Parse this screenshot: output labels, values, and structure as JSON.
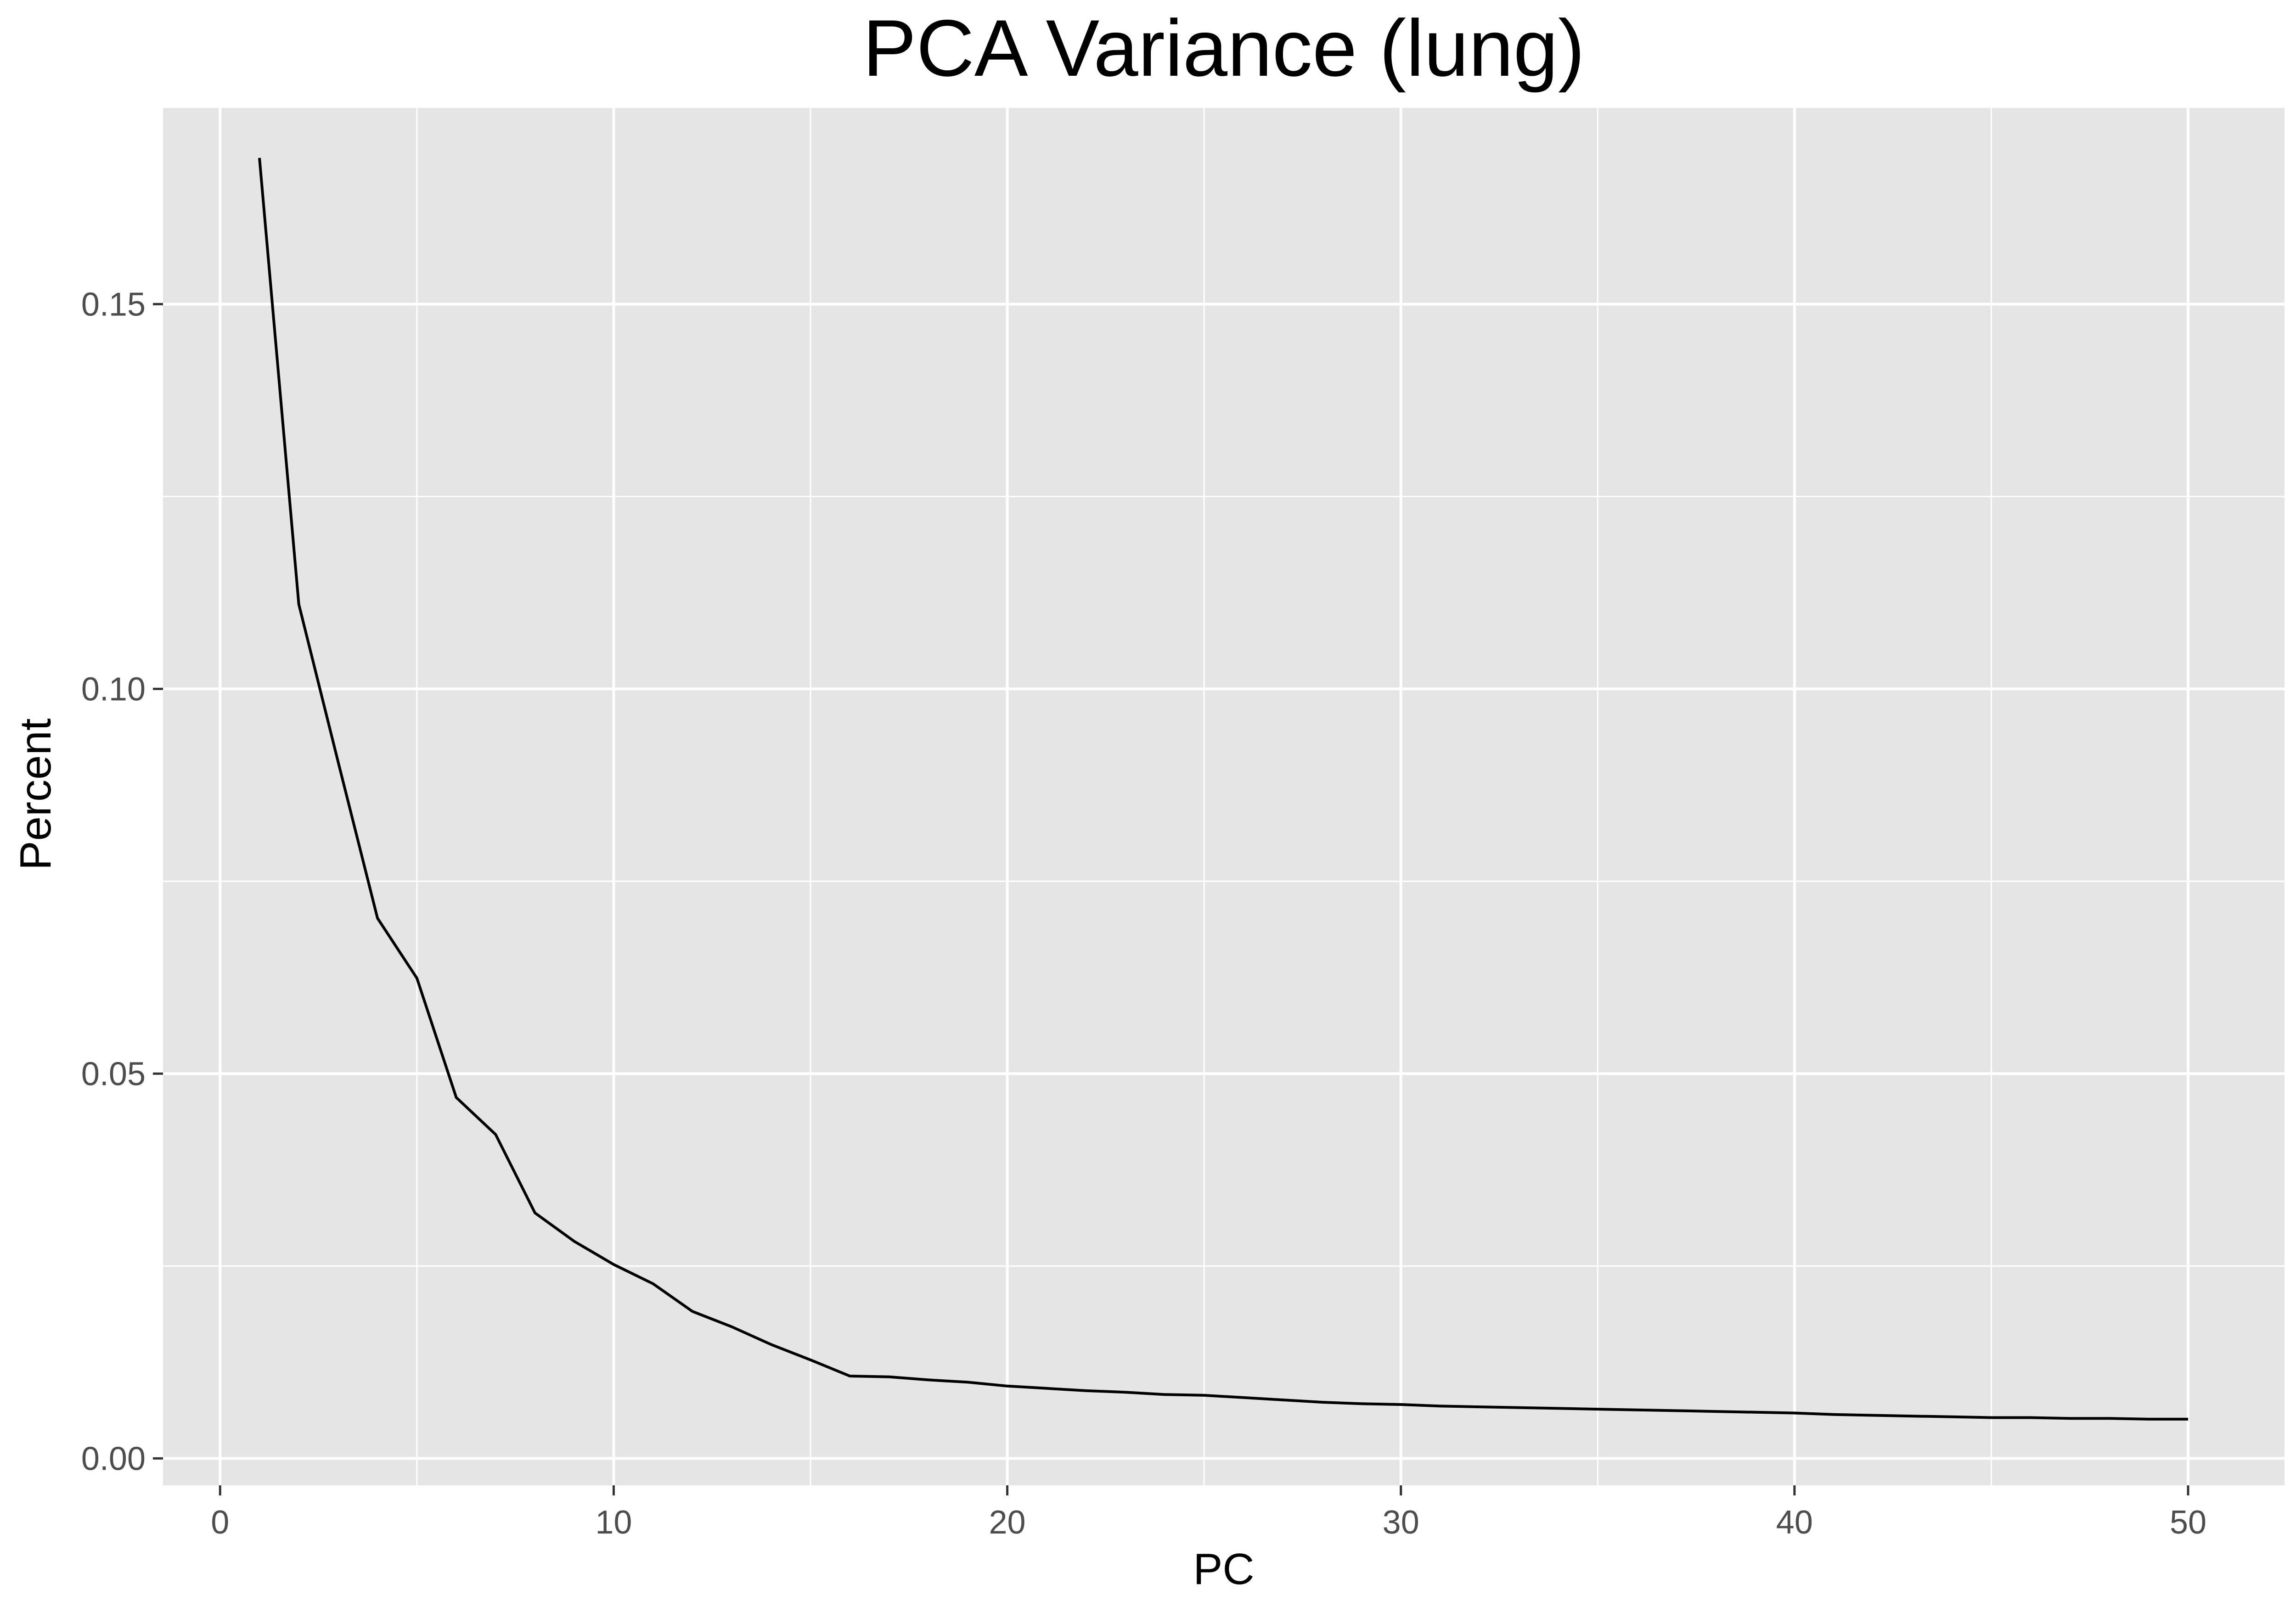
{
  "chart_data": {
    "type": "line",
    "title": "PCA Variance (lung)",
    "xlabel": "PC",
    "ylabel": "Percent",
    "xlim": [
      -1.45,
      52.45
    ],
    "ylim": [
      -0.0035,
      0.1755
    ],
    "x_ticks": [
      0,
      10,
      20,
      30,
      40,
      50
    ],
    "x_tick_labels": [
      "0",
      "10",
      "20",
      "30",
      "40",
      "50"
    ],
    "x_minor_ticks": [
      5,
      15,
      25,
      35,
      45
    ],
    "y_ticks": [
      0,
      0.05,
      0.1,
      0.15
    ],
    "y_tick_labels": [
      "0.00",
      "0.05",
      "0.10",
      "0.15"
    ],
    "y_minor_ticks": [
      0.025,
      0.075,
      0.125
    ],
    "grid": true,
    "colors": {
      "panel": "#e5e5e5",
      "grid": "#ffffff",
      "line": "#000000"
    },
    "series": [
      {
        "x": [
          1,
          2,
          3,
          4,
          5,
          6,
          7,
          8,
          9,
          10,
          11,
          12,
          13,
          14,
          15,
          16,
          17,
          18,
          19,
          20,
          21,
          22,
          23,
          24,
          25,
          26,
          27,
          28,
          29,
          30,
          31,
          32,
          33,
          34,
          35,
          36,
          37,
          38,
          39,
          40,
          41,
          42,
          43,
          44,
          45,
          46,
          47,
          48,
          49,
          50
        ],
        "values": [
          0.169,
          0.111,
          0.0905,
          0.0702,
          0.0624,
          0.0469,
          0.0421,
          0.0319,
          0.0282,
          0.0252,
          0.0227,
          0.0191,
          0.0171,
          0.0148,
          0.0128,
          0.0107,
          0.0106,
          0.0102,
          0.0099,
          0.0094,
          0.0091,
          0.0088,
          0.0086,
          0.0083,
          0.0082,
          0.0079,
          0.0076,
          0.0073,
          0.0071,
          0.007,
          0.0068,
          0.0067,
          0.0066,
          0.0065,
          0.0064,
          0.0063,
          0.0062,
          0.0061,
          0.006,
          0.0059,
          0.0057,
          0.0056,
          0.0055,
          0.0054,
          0.0053,
          0.0053,
          0.0052,
          0.0052,
          0.0051,
          0.0051
        ]
      }
    ]
  }
}
